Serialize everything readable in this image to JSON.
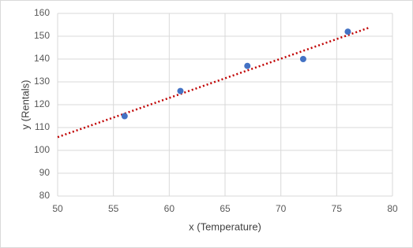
{
  "chart_data": {
    "type": "scatter",
    "x_label": "x (Temperature)",
    "y_label": "y (Rentals)",
    "series": [
      {
        "x": [
          56,
          61,
          67,
          72,
          76
        ],
        "values": [
          115,
          126,
          137,
          140,
          152
        ],
        "color": "#4472c4"
      }
    ],
    "trendline": {
      "x": [
        50,
        78
      ],
      "values": [
        105.8,
        153.9
      ],
      "color": "#c00000"
    },
    "xlim": [
      50,
      80
    ],
    "xticks": [
      50,
      55,
      60,
      65,
      70,
      75,
      80
    ],
    "ylim": [
      80,
      160
    ],
    "yticks": [
      80,
      90,
      100,
      110,
      120,
      130,
      140,
      150,
      160
    ],
    "grid": true
  }
}
